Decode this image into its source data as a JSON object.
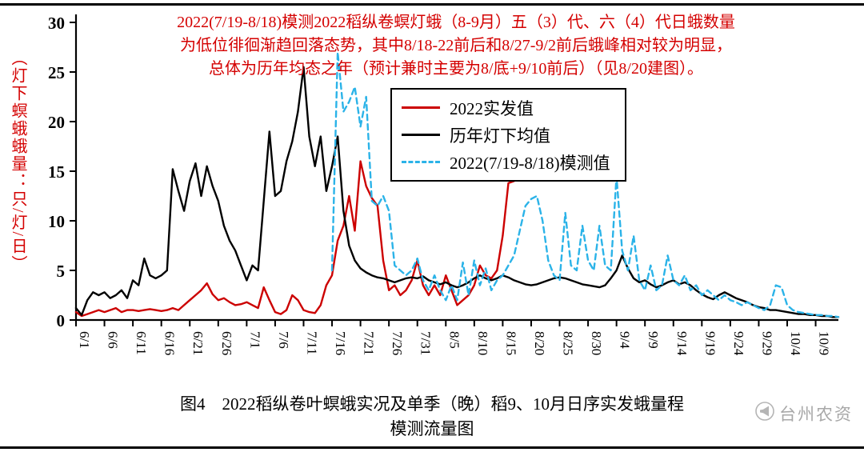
{
  "annotation": {
    "line1": "2022(7/19-8/18)模测2022稻纵卷螟灯蛾（8-9月）五（3）代、六（4）代日蛾数量",
    "line2": "为低位徘徊渐趋回落态势，其中8/18-22前后和8/27-9/2前后蛾峰相对较为明显，",
    "line3": "总体为历年均态之年（预计兼时主要为8/底+9/10前后）（见8/20建图）。"
  },
  "y_axis": {
    "label": "（灯下螟蛾蛾量：只/灯/日）"
  },
  "legend": {
    "items": [
      {
        "label": "2022实发值"
      },
      {
        "label": "历年灯下均值"
      },
      {
        "label": "2022(7/19-8/18)模测值"
      }
    ]
  },
  "caption": {
    "line1": "图4　2022稻纵卷叶螟蛾实况及单季（晚）稻9、10月日序实发蛾量程",
    "line2": "模测流量图"
  },
  "watermark": {
    "text": "台州农资"
  },
  "chart_data": {
    "type": "line",
    "title": "",
    "ylabel": "（灯下螟蛾蛾量：只/灯/日）",
    "ylim": [
      0,
      30
    ],
    "yticks": [
      0,
      5,
      10,
      15,
      20,
      25,
      30
    ],
    "grid": false,
    "legend_position": "upper-middle",
    "x_unit": "date (daily, 6/1 – 10/13)",
    "xticks": [
      {
        "label": "6/1",
        "index": 0
      },
      {
        "label": "6/6",
        "index": 5
      },
      {
        "label": "6/11",
        "index": 10
      },
      {
        "label": "6/16",
        "index": 15
      },
      {
        "label": "6/21",
        "index": 20
      },
      {
        "label": "6/26",
        "index": 25
      },
      {
        "label": "7/1",
        "index": 30
      },
      {
        "label": "7/6",
        "index": 35
      },
      {
        "label": "7/11",
        "index": 40
      },
      {
        "label": "7/16",
        "index": 45
      },
      {
        "label": "7/21",
        "index": 50
      },
      {
        "label": "7/26",
        "index": 55
      },
      {
        "label": "7/31",
        "index": 60
      },
      {
        "label": "8/5",
        "index": 65
      },
      {
        "label": "8/10",
        "index": 70
      },
      {
        "label": "8/15",
        "index": 75
      },
      {
        "label": "8/20",
        "index": 80
      },
      {
        "label": "8/25",
        "index": 85
      },
      {
        "label": "8/30",
        "index": 90
      },
      {
        "label": "9/4",
        "index": 95
      },
      {
        "label": "9/9",
        "index": 100
      },
      {
        "label": "9/14",
        "index": 105
      },
      {
        "label": "9/19",
        "index": 110
      },
      {
        "label": "9/24",
        "index": 115
      },
      {
        "label": "9/29",
        "index": 120
      },
      {
        "label": "10/4",
        "index": 125
      },
      {
        "label": "10/9",
        "index": 130
      }
    ],
    "series": [
      {
        "name": "2022实发值",
        "color": "#cc0000",
        "dash": null,
        "width": 2.4,
        "values": [
          0.8,
          0.4,
          0.6,
          0.8,
          1.0,
          0.8,
          1.0,
          1.2,
          0.8,
          1.0,
          1.0,
          0.9,
          1.0,
          1.1,
          1.0,
          0.9,
          1.0,
          1.2,
          1.0,
          1.5,
          2.0,
          2.5,
          3.0,
          3.7,
          2.6,
          2.0,
          2.2,
          1.8,
          1.5,
          1.6,
          1.8,
          1.5,
          1.2,
          3.3,
          2.0,
          0.8,
          0.6,
          1.0,
          2.5,
          2.0,
          1.0,
          0.8,
          0.7,
          1.5,
          3.5,
          4.5,
          8.0,
          9.5,
          12.5,
          9.0,
          16.0,
          13.5,
          12.3,
          11.5,
          6.0,
          3.0,
          3.5,
          2.5,
          3.0,
          4.0,
          6.0,
          3.5,
          2.5,
          3.5,
          2.5,
          4.5,
          3.0,
          1.5,
          2.0,
          2.5,
          3.5,
          5.5,
          4.5,
          4.2,
          5.0,
          8.5,
          13.8,
          14.0,
          null,
          null,
          null,
          null,
          null,
          null,
          null,
          null,
          null,
          null,
          null,
          null,
          null,
          null,
          null,
          null,
          null,
          null,
          null,
          null,
          null,
          null,
          null,
          null,
          null,
          null,
          null,
          null,
          null,
          null,
          null,
          null,
          null,
          null,
          null,
          null,
          null,
          null,
          null,
          null,
          null,
          null,
          null,
          null,
          null,
          null,
          null,
          null,
          null,
          null,
          null,
          null,
          null,
          null,
          null,
          null,
          null
        ]
      },
      {
        "name": "历年灯下均值",
        "color": "#000000",
        "dash": null,
        "width": 2.4,
        "values": [
          1.2,
          0.5,
          2.0,
          2.8,
          2.5,
          2.8,
          2.2,
          2.5,
          3.0,
          2.2,
          4.0,
          3.5,
          6.2,
          4.5,
          4.2,
          4.5,
          5.0,
          15.2,
          13.0,
          11.0,
          14.0,
          15.8,
          12.5,
          15.5,
          13.5,
          12.0,
          9.5,
          8.0,
          7.0,
          5.5,
          4.0,
          5.5,
          5.0,
          12.0,
          19.0,
          12.5,
          13.0,
          16.0,
          18.0,
          21.0,
          25.5,
          18.5,
          15.5,
          18.5,
          13.0,
          15.5,
          18.5,
          11.0,
          7.5,
          6.0,
          5.2,
          4.8,
          4.5,
          4.3,
          4.2,
          4.0,
          3.8,
          4.0,
          4.2,
          4.3,
          4.2,
          4.4,
          4.0,
          3.8,
          3.6,
          3.8,
          3.5,
          3.3,
          3.5,
          3.8,
          4.2,
          4.5,
          4.2,
          4.0,
          4.2,
          4.5,
          4.3,
          4.0,
          3.8,
          3.6,
          3.5,
          3.6,
          3.8,
          4.0,
          4.2,
          4.3,
          4.2,
          4.0,
          3.8,
          3.6,
          3.5,
          3.4,
          3.3,
          3.5,
          4.2,
          5.0,
          6.5,
          5.2,
          4.2,
          3.8,
          4.0,
          3.6,
          3.3,
          3.5,
          3.8,
          4.0,
          3.6,
          3.8,
          3.5,
          3.0,
          2.6,
          2.3,
          2.1,
          2.5,
          2.8,
          2.5,
          2.2,
          2.0,
          1.8,
          1.5,
          1.3,
          1.2,
          1.0,
          1.0,
          0.9,
          0.8,
          0.7,
          0.6,
          0.6,
          0.5,
          0.5,
          0.4,
          0.4,
          0.3,
          0.3
        ]
      },
      {
        "name": "2022(7/19-8/18)模测值",
        "color": "#2bb3e8",
        "dash": "7 5",
        "width": 2.4,
        "values": [
          null,
          null,
          null,
          null,
          null,
          null,
          null,
          null,
          null,
          null,
          null,
          null,
          null,
          null,
          null,
          null,
          null,
          null,
          null,
          null,
          null,
          null,
          null,
          null,
          null,
          null,
          null,
          null,
          null,
          null,
          null,
          null,
          null,
          null,
          null,
          null,
          null,
          null,
          null,
          null,
          null,
          null,
          null,
          null,
          null,
          5.0,
          27.0,
          21.0,
          22.0,
          23.5,
          19.5,
          22.5,
          12.0,
          11.5,
          12.5,
          11.0,
          5.5,
          5.0,
          4.5,
          5.0,
          6.2,
          4.0,
          3.0,
          4.5,
          3.0,
          2.0,
          3.5,
          2.0,
          5.8,
          2.5,
          6.0,
          3.5,
          5.2,
          3.0,
          4.0,
          4.5,
          5.5,
          6.5,
          9.0,
          11.5,
          12.2,
          12.5,
          10.0,
          6.0,
          4.5,
          4.0,
          10.8,
          5.5,
          5.0,
          9.5,
          6.0,
          5.0,
          9.5,
          5.5,
          5.0,
          14.5,
          7.0,
          5.0,
          8.5,
          4.0,
          3.0,
          5.5,
          3.0,
          3.5,
          6.5,
          4.0,
          3.5,
          4.5,
          3.0,
          3.5,
          2.5,
          3.0,
          2.5,
          2.0,
          2.5,
          2.0,
          1.8,
          1.5,
          1.8,
          1.5,
          1.2,
          1.0,
          1.5,
          3.5,
          3.3,
          1.5,
          1.0,
          0.8,
          0.7,
          0.6,
          0.5,
          0.5,
          0.4,
          0.4,
          0.3
        ]
      }
    ]
  }
}
